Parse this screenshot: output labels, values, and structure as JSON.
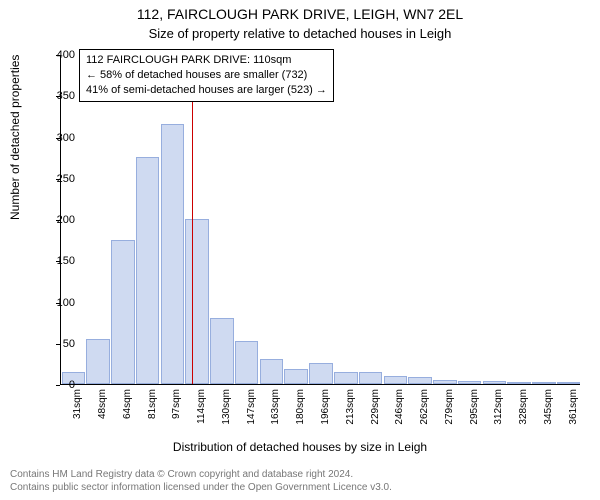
{
  "title": "112, FAIRCLOUGH PARK DRIVE, LEIGH, WN7 2EL",
  "subtitle": "Size of property relative to detached houses in Leigh",
  "chart": {
    "type": "histogram",
    "ylabel": "Number of detached properties",
    "xlabel": "Distribution of detached houses by size in Leigh",
    "ylim": [
      0,
      400
    ],
    "ytick_step": 50,
    "background_color": "#ffffff",
    "bar_fill": "#cfdaf1",
    "bar_border": "#97aede",
    "ref_line_color": "#c00",
    "ref_value_sqm": 110,
    "label_fontsize": 12,
    "tick_fontsize": 10,
    "title_fontsize": 14,
    "categories": [
      "31sqm",
      "48sqm",
      "64sqm",
      "81sqm",
      "97sqm",
      "114sqm",
      "130sqm",
      "147sqm",
      "163sqm",
      "180sqm",
      "196sqm",
      "213sqm",
      "229sqm",
      "246sqm",
      "262sqm",
      "279sqm",
      "295sqm",
      "312sqm",
      "328sqm",
      "345sqm",
      "361sqm"
    ],
    "values": [
      15,
      55,
      175,
      275,
      315,
      200,
      80,
      52,
      30,
      18,
      25,
      15,
      15,
      10,
      8,
      5,
      4,
      4,
      3,
      3,
      2
    ]
  },
  "info_box": {
    "line1": "112 FAIRCLOUGH PARK DRIVE: 110sqm",
    "line2": "← 58% of detached houses are smaller (732)",
    "line3": "41% of semi-detached houses are larger (523) →"
  },
  "footer": {
    "line1": "Contains HM Land Registry data © Crown copyright and database right 2024.",
    "line2": "Contains public sector information licensed under the Open Government Licence v3.0."
  }
}
